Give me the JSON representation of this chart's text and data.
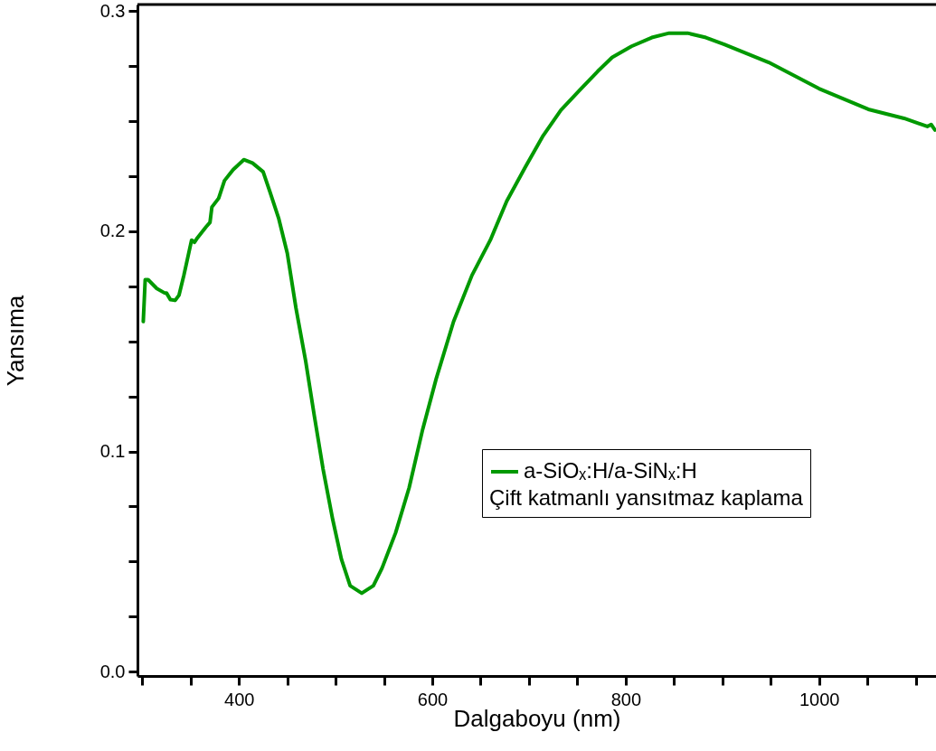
{
  "chart_data": {
    "type": "line",
    "xlabel": "Dalgaboyu (nm)",
    "ylabel": "Yansıma",
    "xlim": [
      295,
      1121
    ],
    "ylim": [
      -0.002,
      0.303
    ],
    "xticks": [
      {
        "value": 300,
        "label": null
      },
      {
        "value": 350,
        "label": null
      },
      400,
      {
        "value": 450,
        "label": null
      },
      {
        "value": 500,
        "label": null
      },
      {
        "value": 550,
        "label": null
      },
      600,
      {
        "value": 650,
        "label": null
      },
      {
        "value": 700,
        "label": null
      },
      {
        "value": 750,
        "label": null
      },
      800,
      {
        "value": 850,
        "label": null
      },
      {
        "value": 900,
        "label": null
      },
      {
        "value": 950,
        "label": null
      },
      1000,
      {
        "value": 1050,
        "label": null
      },
      {
        "value": 1100,
        "label": null
      }
    ],
    "yticks": [
      {
        "value": 0,
        "label": "0.0"
      },
      {
        "value": 0.025,
        "label": null
      },
      {
        "value": 0.05,
        "label": null
      },
      {
        "value": 0.075,
        "label": null
      },
      0.1,
      {
        "value": 0.125,
        "label": null
      },
      {
        "value": 0.15,
        "label": null
      },
      {
        "value": 0.175,
        "label": null
      },
      0.2,
      {
        "value": 0.225,
        "label": null
      },
      {
        "value": 0.25,
        "label": null
      },
      {
        "value": 0.275,
        "label": null
      },
      0.3
    ],
    "grid": false,
    "legend": "right",
    "marker": "none",
    "line_style": "solid",
    "legend_title": "Çift katmanlı yansıtmaz kaplama",
    "series": [
      {
        "name": "a-SiOₓ:H/a-SiNₓ:H",
        "color": "#009900",
        "x": [
          301,
          303,
          306,
          315,
          323,
          325,
          329,
          334,
          338,
          343,
          351,
          354,
          357,
          366,
          370,
          372,
          379,
          385,
          394,
          405,
          414,
          425,
          432,
          441,
          450,
          459,
          469,
          478,
          487,
          497,
          506,
          515,
          527,
          539,
          548,
          562,
          576,
          590,
          604,
          622,
          641,
          660,
          677,
          696,
          714,
          733,
          753,
          771,
          786,
          806,
          827,
          845,
          864,
          883,
          902,
          948,
          1000,
          1051,
          1088,
          1112,
          1116,
          1120
        ],
        "values": [
          0.159,
          0.178,
          0.178,
          0.174,
          0.172,
          0.172,
          0.169,
          0.1686,
          0.171,
          0.18,
          0.196,
          0.195,
          0.197,
          0.202,
          0.204,
          0.211,
          0.215,
          0.223,
          0.228,
          0.2325,
          0.231,
          0.227,
          0.218,
          0.206,
          0.19,
          0.165,
          0.141,
          0.116,
          0.092,
          0.069,
          0.051,
          0.039,
          0.0356,
          0.039,
          0.047,
          0.063,
          0.0835,
          0.11,
          0.133,
          0.159,
          0.18,
          0.196,
          0.2137,
          0.229,
          0.243,
          0.255,
          0.2644,
          0.2726,
          0.279,
          0.284,
          0.288,
          0.29,
          0.29,
          0.288,
          0.2849,
          0.2767,
          0.2648,
          0.2554,
          0.2513,
          0.2476,
          0.2485,
          0.246
        ]
      }
    ]
  }
}
